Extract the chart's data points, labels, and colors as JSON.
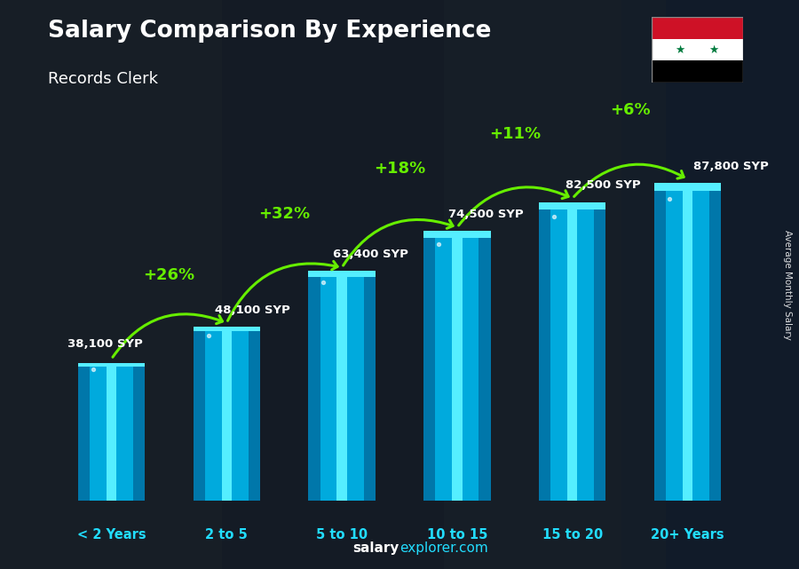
{
  "categories": [
    "< 2 Years",
    "2 to 5",
    "5 to 10",
    "10 to 15",
    "15 to 20",
    "20+ Years"
  ],
  "values": [
    38100,
    48100,
    63400,
    74500,
    82500,
    87800
  ],
  "labels": [
    "38,100 SYP",
    "48,100 SYP",
    "63,400 SYP",
    "74,500 SYP",
    "82,500 SYP",
    "87,800 SYP"
  ],
  "pct_changes": [
    "+26%",
    "+32%",
    "+18%",
    "+11%",
    "+6%"
  ],
  "title_main": "Salary Comparison By Experience",
  "title_sub": "Records Clerk",
  "ylabel_right": "Average Monthly Salary",
  "footer_bold": "salary",
  "footer_light": "explorer.com",
  "bg_color": "#1a2535",
  "ylim": [
    0,
    110000
  ],
  "arrow_color": "#66ee00",
  "pct_color": "#66ee00",
  "label_color": "#ffffff",
  "cat_color": "#22ddff",
  "bar_dark": "#0077aa",
  "bar_mid": "#00aadd",
  "bar_light": "#22ccee",
  "bar_highlight": "#55eeff"
}
